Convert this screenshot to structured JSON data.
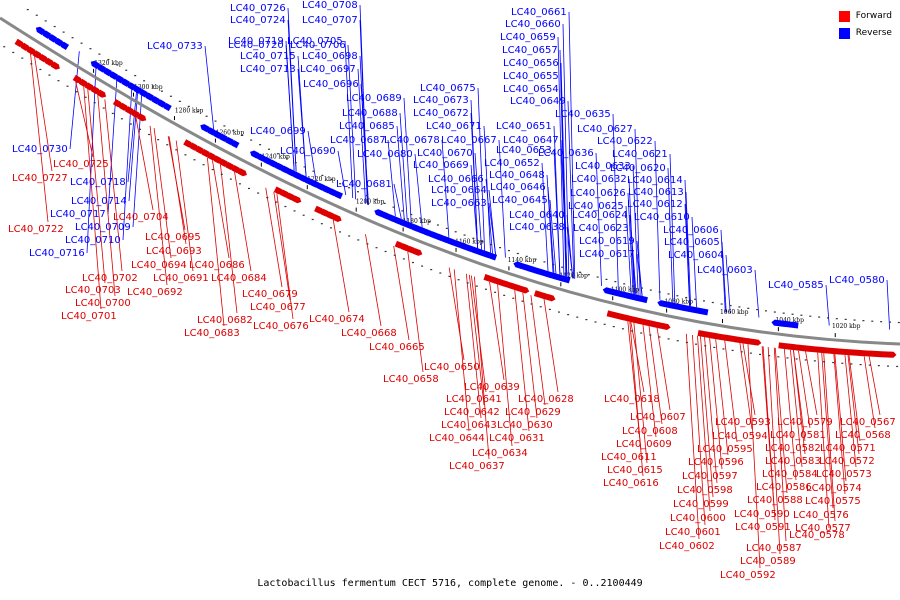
{
  "caption": "Lactobacillus fermentum CECT 5716, complete genome. - 0..2100449",
  "legend": [
    {
      "label": "Forward",
      "color": "#ff0000"
    },
    {
      "label": "Reverse",
      "color": "#0000ff"
    }
  ],
  "colors": {
    "forward": "#dd0000",
    "reverse": "#0000ff",
    "backbone": "#777777"
  },
  "ticks": [
    "1320 kbp",
    "1300 kbp",
    "1280 kbp",
    "1260 kbp",
    "1240 kbp",
    "1220 kbp",
    "1200 kbp",
    "1180 kbp",
    "1160 kbp",
    "1140 kbp",
    "1120 kbp",
    "1100 kbp",
    "1080 kbp",
    "1060 kbp",
    "1040 kbp",
    "1020 kbp"
  ],
  "reverse_labels": [
    "LC40_0726",
    "LC40_0708",
    "LC40_0724",
    "LC40_0707",
    "LC40_0720",
    "LC40_0706",
    "LC40_0719",
    "LC40_0705",
    "LC40_0715",
    "LC40_0698",
    "LC40_0713",
    "LC40_0697",
    "LC40_0696",
    "LC40_0733",
    "LC40_0689",
    "LC40_0688",
    "LC40_0685",
    "LC40_0687",
    "LC40_0680",
    "LC40_0699",
    "LC40_0690",
    "LC40_0681",
    "LC40_0730",
    "LC40_0718",
    "LC40_0714",
    "LC40_0717",
    "LC40_0709",
    "LC40_0710",
    "LC40_0716",
    "LC40_0675",
    "LC40_0673",
    "LC40_0672",
    "LC40_0671",
    "LC40_0667",
    "LC40_0678",
    "LC40_0670",
    "LC40_0669",
    "LC40_0666",
    "LC40_0664",
    "LC40_0663",
    "LC40_0661",
    "LC40_0660",
    "LC40_0659",
    "LC40_0657",
    "LC40_0656",
    "LC40_0655",
    "LC40_0654",
    "LC40_0649",
    "LC40_0651",
    "LC40_0647",
    "LC40_0653",
    "LC40_0652",
    "LC40_0648",
    "LC40_0646",
    "LC40_0645",
    "LC40_0640",
    "LC40_0638",
    "LC40_0635",
    "LC40_0627",
    "LC40_0622",
    "LC40_0636",
    "LC40_0621",
    "LC40_0633",
    "LC40_0620",
    "LC40_0632",
    "LC40_0614",
    "LC40_0626",
    "LC40_0613",
    "LC40_0625",
    "LC40_0612",
    "LC40_0624",
    "LC40_0610",
    "LC40_0623",
    "LC40_0606",
    "LC40_0619",
    "LC40_0605",
    "LC40_0617",
    "LC40_0604",
    "LC40_0603",
    "LC40_0585",
    "LC40_0580"
  ],
  "forward_labels": [
    "LC40_0725",
    "LC40_0727",
    "LC40_0704",
    "LC40_0722",
    "LC40_0695",
    "LC40_0693",
    "LC40_0694",
    "LC40_0686",
    "LC40_0702",
    "LC40_0691",
    "LC40_0684",
    "LC40_0703",
    "LC40_0692",
    "LC40_0700",
    "LC40_0679",
    "LC40_0701",
    "LC40_0677",
    "LC40_0682",
    "LC40_0674",
    "LC40_0676",
    "LC40_0683",
    "LC40_0668",
    "LC40_0665",
    "LC40_0650",
    "LC40_0658",
    "LC40_0639",
    "LC40_0641",
    "LC40_0628",
    "LC40_0642",
    "LC40_0629",
    "LC40_0643",
    "LC40_0630",
    "LC40_0644",
    "LC40_0631",
    "LC40_0634",
    "LC40_0637",
    "LC40_0618",
    "LC40_0607",
    "LC40_0608",
    "LC40_0609",
    "LC40_0611",
    "LC40_0615",
    "LC40_0616",
    "LC40_0593",
    "LC40_0579",
    "LC40_0567",
    "LC40_0594",
    "LC40_0581",
    "LC40_0568",
    "LC40_0595",
    "LC40_0582",
    "LC40_0571",
    "LC40_0596",
    "LC40_0583",
    "LC40_0572",
    "LC40_0597",
    "LC40_0584",
    "LC40_0573",
    "LC40_0598",
    "LC40_0586",
    "LC40_0574",
    "LC40_0599",
    "LC40_0588",
    "LC40_0575",
    "LC40_0600",
    "LC40_0590",
    "LC40_0576",
    "LC40_0601",
    "LC40_0591",
    "LC40_0577",
    "LC40_0602",
    "LC40_0587",
    "LC40_0578",
    "LC40_0589",
    "LC40_0592"
  ]
}
